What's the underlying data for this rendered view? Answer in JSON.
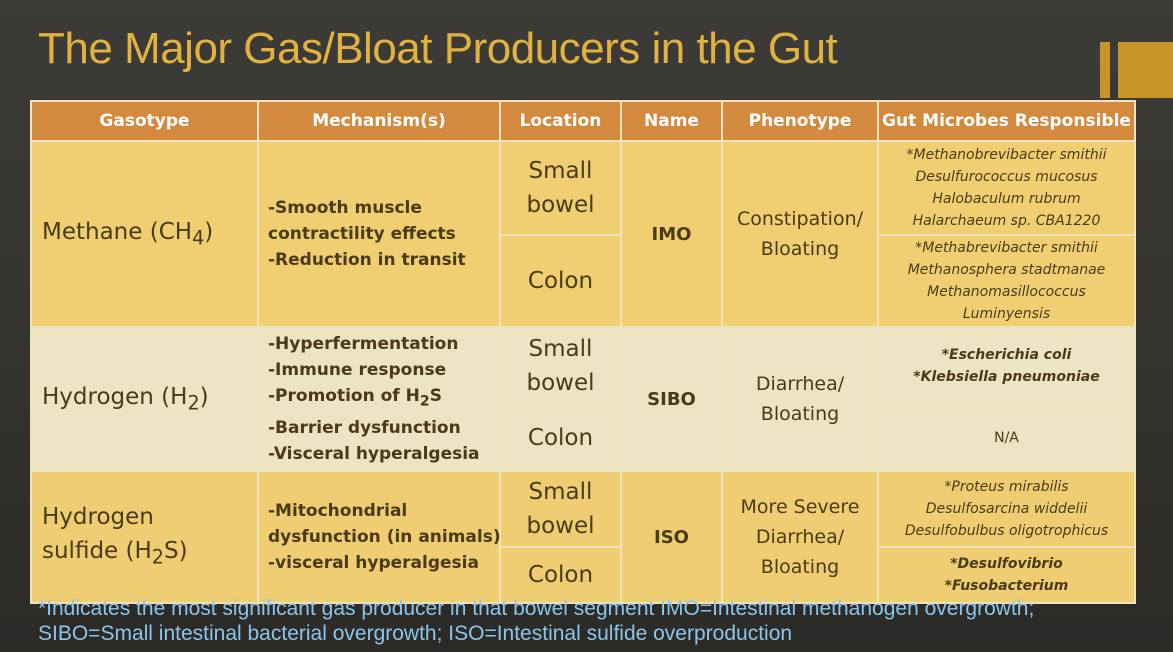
{
  "title": "The Major Gas/Bloat Producers in the Gut",
  "headers": [
    "Gasotype",
    "Mechanism(s)",
    "Location",
    "Name",
    "Phenotype",
    "Gut Microbes Responsible"
  ],
  "rows": [
    {
      "gasotype_main": "Methane (CH",
      "gasotype_sub": "4",
      "gasotype_tail": ")",
      "mechanisms": [
        "-Smooth muscle",
        "contractility effects",
        "-Reduction in transit"
      ],
      "location_1": [
        "Small",
        "bowel"
      ],
      "location_2": "Colon",
      "name": "IMO",
      "phenotype": [
        "Constipation/",
        "Bloating"
      ],
      "microbes_1": [
        "*Methanobrevibacter smithii",
        "Desulfurococcus mucosus",
        "Halobaculum rubrum",
        "Halarchaeum sp. CBA1220"
      ],
      "microbes_2": [
        "*Methabrevibacter smithii",
        "Methanosphera stadtmanae",
        "Methanomasillococcus",
        "Luminyensis"
      ]
    },
    {
      "gasotype_main": "Hydrogen (H",
      "gasotype_sub": "2",
      "gasotype_tail": ")",
      "mechanisms": [
        "-Hyperfermentation",
        "-Immune response",
        "-Promotion of H",
        "-Barrier dysfunction",
        "-Visceral hyperalgesia"
      ],
      "mechanism_sub": "2",
      "mechanism_sub_tail": "S",
      "location_1": [
        "Small",
        "bowel"
      ],
      "location_2": "Colon",
      "name": "SIBO",
      "phenotype": [
        "Diarrhea/",
        "Bloating"
      ],
      "microbes_1": [
        "*Escherichia coli",
        "*Klebsiella pneumoniae"
      ],
      "microbes_2": [
        "N/A"
      ]
    },
    {
      "gasotype_main_1": "Hydrogen",
      "gasotype_main_2": "sulfide (H",
      "gasotype_sub": "2",
      "gasotype_tail": "S)",
      "mechanisms": [
        "-Mitochondrial",
        "dysfunction (in animals)",
        "-visceral hyperalgesia"
      ],
      "location_1": [
        "Small",
        "bowel"
      ],
      "location_2": "Colon",
      "name": "ISO",
      "phenotype": [
        "More Severe",
        "Diarrhea/",
        "Bloating"
      ],
      "microbes_1": [
        "*Proteus mirabilis",
        "Desulfosarcina widdelii",
        "Desulfobulbus oligotrophicus"
      ],
      "microbes_2": [
        "*Desulfovibrio",
        "*Fusobacterium"
      ]
    }
  ],
  "footnote": {
    "line1": "*Indicates the most significant gas producer in that bowel segment IMO=Intestinal methanogen overgrowth;",
    "line2": "SIBO=Small intestinal bacterial overgrowth; ISO=Intestinal sulfide overproduction"
  },
  "colors": {
    "title": "#e2b23f",
    "header_bg": "#d48a3e",
    "band_gold": "#f0cf72",
    "band_cream": "#ede4c4",
    "footnote": "#8cc6ec"
  }
}
